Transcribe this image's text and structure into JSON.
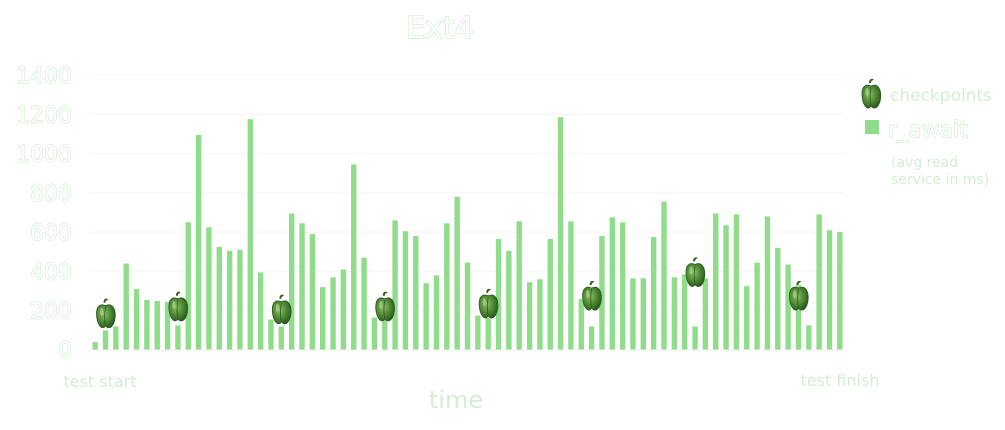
{
  "chart_data": {
    "type": "bar",
    "title": "Ext4",
    "xlabel": "time",
    "ylabel": "",
    "ylim": [
      0,
      1400
    ],
    "yticks": [
      "0",
      "200",
      "400",
      "600",
      "800",
      "1000",
      "1200",
      "1400"
    ],
    "x_start_label": "test start",
    "x_end_label": "test finish",
    "bar_color": "#8fdc8a",
    "grid": true,
    "legend_position": "right",
    "legend": {
      "checkpoints_label": "checkpoints",
      "series_label": "r_await",
      "series_note_line1": "(avg read",
      "series_note_line2": "service in ms)"
    },
    "series": [
      {
        "name": "r_await",
        "values": [
          40,
          100,
          120,
          440,
          310,
          255,
          250,
          245,
          125,
          650,
          1095,
          625,
          525,
          505,
          510,
          1175,
          395,
          155,
          120,
          695,
          645,
          590,
          320,
          370,
          410,
          945,
          470,
          165,
          170,
          660,
          605,
          580,
          340,
          380,
          645,
          780,
          445,
          175,
          165,
          565,
          505,
          655,
          345,
          360,
          565,
          1185,
          655,
          260,
          120,
          580,
          675,
          650,
          365,
          365,
          575,
          755,
          370,
          385,
          120,
          365,
          695,
          635,
          690,
          325,
          445,
          680,
          520,
          435,
          330,
          125,
          690,
          610,
          600
        ]
      }
    ],
    "checkpoints": [
      {
        "bar_index": 1,
        "value": 190
      },
      {
        "bar_index": 8,
        "value": 225
      },
      {
        "bar_index": 18,
        "value": 210
      },
      {
        "bar_index": 28,
        "value": 225
      },
      {
        "bar_index": 38,
        "value": 240
      },
      {
        "bar_index": 48,
        "value": 280
      },
      {
        "bar_index": 58,
        "value": 400
      },
      {
        "bar_index": 68,
        "value": 280
      }
    ]
  }
}
